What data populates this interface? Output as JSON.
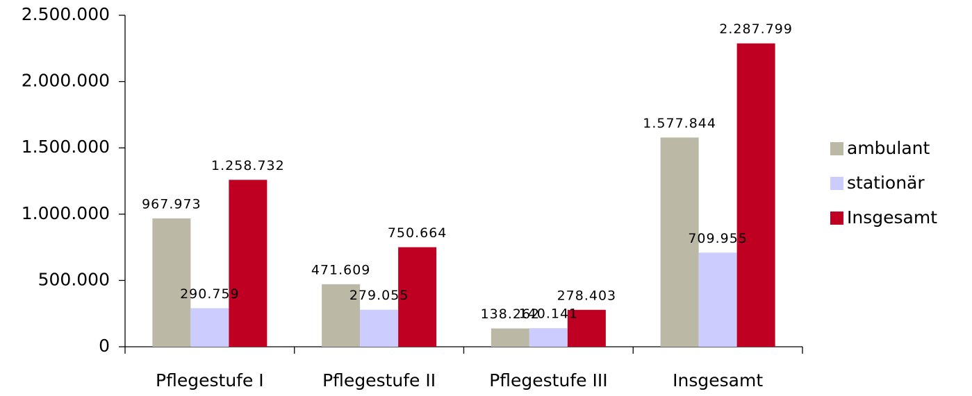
{
  "chart_data": {
    "type": "bar",
    "categories": [
      "Pflegestufe I",
      "Pflegestufe II",
      "Pflegestufe III",
      "Insgesamt"
    ],
    "series": [
      {
        "name": "ambulant",
        "color": "#bbb8a6",
        "values": [
          967973,
          471609,
          138262,
          1577844
        ],
        "value_labels": [
          "967.973",
          "471.609",
          "138.262",
          "1.577.844"
        ]
      },
      {
        "name": "stationär",
        "color": "#ccccff",
        "values": [
          290759,
          279055,
          140141,
          709955
        ],
        "value_labels": [
          "290.759",
          "279.055",
          "140.141",
          "709.955"
        ]
      },
      {
        "name": "Insgesamt",
        "color": "#c00023",
        "values": [
          1258732,
          750664,
          278403,
          2287799
        ],
        "value_labels": [
          "1.258.732",
          "750.664",
          "278.403",
          "2.287.799"
        ]
      }
    ],
    "ylim": [
      0,
      2500000
    ],
    "yticks": [
      {
        "value": 0,
        "label": "0"
      },
      {
        "value": 500000,
        "label": "500.000"
      },
      {
        "value": 1000000,
        "label": "1.000.000"
      },
      {
        "value": 1500000,
        "label": "1.500.000"
      },
      {
        "value": 2000000,
        "label": "2.000.000"
      },
      {
        "value": 2500000,
        "label": "2.500.000"
      }
    ],
    "legend": "right"
  }
}
